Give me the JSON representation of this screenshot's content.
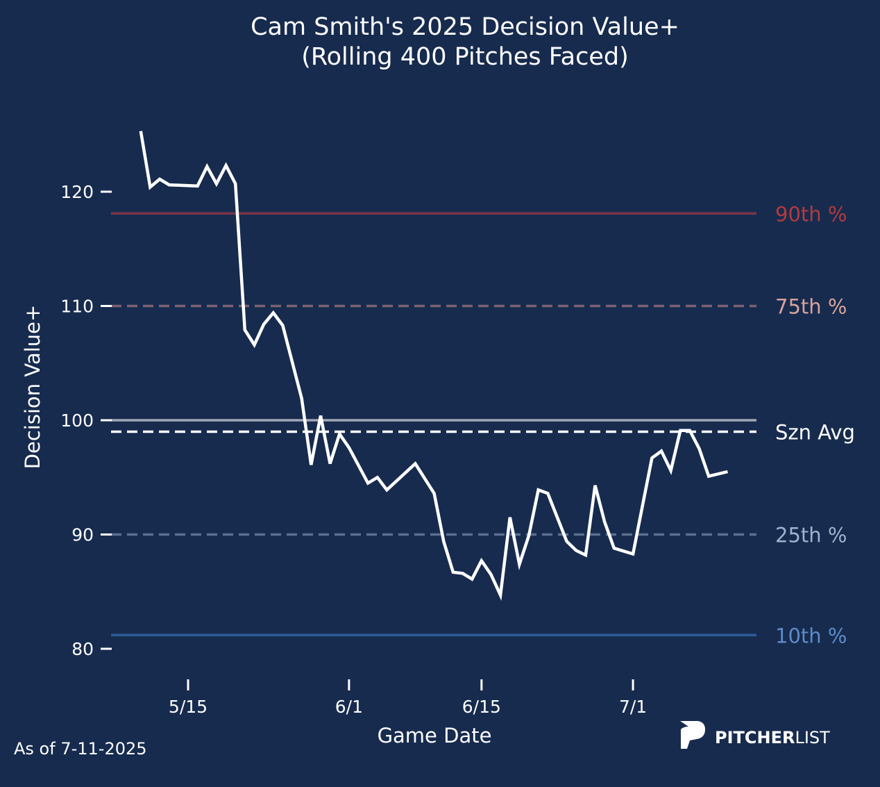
{
  "chart_data": {
    "type": "line",
    "title": "Cam Smith's 2025 Decision Value+",
    "subtitle": "(Rolling 400 Pitches Faced)",
    "xlabel": "Game Date",
    "ylabel": "Decision Value+",
    "ylim": [
      78,
      128
    ],
    "yticks": [
      80,
      90,
      100,
      110,
      120
    ],
    "xticks": [
      "5/15",
      "6/1",
      "6/15",
      "7/1"
    ],
    "grid": false,
    "series": [
      {
        "color": "#ffffff",
        "x": [
          "5/10",
          "5/11",
          "5/12",
          "5/13",
          "5/16",
          "5/17",
          "5/18",
          "5/19",
          "5/20",
          "5/21",
          "5/22",
          "5/23",
          "5/24",
          "5/25",
          "5/27",
          "5/28",
          "5/29",
          "5/30",
          "5/31",
          "6/1",
          "6/3",
          "6/4",
          "6/5",
          "6/8",
          "6/10",
          "6/11",
          "6/12",
          "6/13",
          "6/14",
          "6/15",
          "6/16",
          "6/17",
          "6/18",
          "6/19",
          "6/20",
          "6/21",
          "6/22",
          "6/24",
          "6/25",
          "6/26",
          "6/27",
          "6/28",
          "6/29",
          "7/1",
          "7/2",
          "7/3",
          "7/4",
          "7/5",
          "7/6",
          "7/7",
          "7/8",
          "7/9",
          "7/11"
        ],
        "y": [
          125.3,
          120.4,
          121.1,
          120.6,
          120.5,
          122.2,
          120.7,
          122.3,
          120.7,
          107.9,
          106.6,
          108.4,
          109.4,
          108.3,
          101.9,
          96.1,
          100.4,
          96.2,
          98.8,
          97.6,
          94.5,
          95.0,
          93.9,
          96.2,
          93.6,
          89.4,
          86.7,
          86.6,
          86.1,
          87.7,
          86.5,
          84.7,
          91.5,
          87.4,
          89.9,
          93.9,
          93.6,
          89.4,
          88.6,
          88.2,
          94.3,
          91.1,
          88.8,
          88.3,
          92.5,
          96.7,
          97.3,
          95.6,
          99.1,
          99.1,
          97.5,
          95.1,
          95.5
        ]
      }
    ],
    "reference_lines": [
      {
        "label": "90th %",
        "value": 118.1,
        "style": "solid",
        "color": "#7b3648",
        "label_color": "#b23a40"
      },
      {
        "label": "75th %",
        "value": 110.0,
        "style": "dashed",
        "color": "#7a6272",
        "label_color": "#d9a39c"
      },
      {
        "label": "",
        "value": 100.0,
        "style": "solid",
        "color": "#a3a8b4",
        "label_color": "#ffffff"
      },
      {
        "label": "Szn Avg",
        "value": 99.0,
        "style": "dashed",
        "color": "#ffffff",
        "label_color": "#ffffff"
      },
      {
        "label": "25th %",
        "value": 90.0,
        "style": "dashed",
        "color": "#5b7090",
        "label_color": "#9fb3cf"
      },
      {
        "label": "10th %",
        "value": 81.2,
        "style": "solid",
        "color": "#2e5b98",
        "label_color": "#5d8bc8"
      }
    ]
  },
  "footer": {
    "as_of": "As of 7-11-2025"
  },
  "logo": {
    "brand_bold": "PITCHER",
    "brand_light": "LIST"
  },
  "colors": {
    "background": "#172b4e",
    "line": "#ffffff"
  }
}
